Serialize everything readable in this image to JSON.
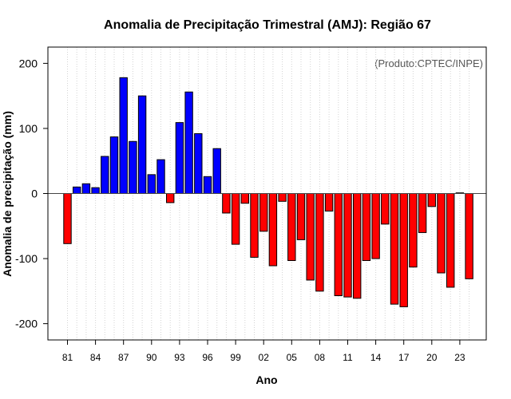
{
  "chart_data": {
    "type": "bar",
    "title": "Anomalia de Precipitação Trimestral (AMJ): Região 67",
    "xlabel": "Ano",
    "ylabel": "Anomalia de precipitação (mm)",
    "credit": "(Produto:CPTEC/INPE)",
    "ylim": [
      -225,
      225
    ],
    "y_ticks": [
      -200,
      -100,
      0,
      100,
      200
    ],
    "x_tick_labels": [
      "81",
      "84",
      "87",
      "90",
      "93",
      "96",
      "99",
      "02",
      "05",
      "08",
      "11",
      "14",
      "17",
      "20",
      "23"
    ],
    "categories": [
      1981,
      1982,
      1983,
      1984,
      1985,
      1986,
      1987,
      1988,
      1989,
      1990,
      1991,
      1992,
      1993,
      1994,
      1995,
      1996,
      1997,
      1998,
      1999,
      2000,
      2001,
      2002,
      2003,
      2004,
      2005,
      2006,
      2007,
      2008,
      2009,
      2010,
      2011,
      2012,
      2013,
      2014,
      2015,
      2016,
      2017,
      2018,
      2019,
      2020,
      2021,
      2022,
      2023,
      2024
    ],
    "values": [
      -77,
      10,
      15,
      9,
      57,
      87,
      178,
      80,
      150,
      29,
      52,
      -14,
      109,
      156,
      92,
      26,
      69,
      -30,
      -78,
      -15,
      -98,
      -58,
      -111,
      -12,
      -103,
      -71,
      -133,
      -150,
      -27,
      -157,
      -159,
      -161,
      -103,
      -100,
      -47,
      -170,
      -174,
      -113,
      -60,
      -20,
      -122,
      -144,
      1,
      -131
    ],
    "positive_color": "#0000ff",
    "negative_color": "#ff0000",
    "grid": true
  }
}
